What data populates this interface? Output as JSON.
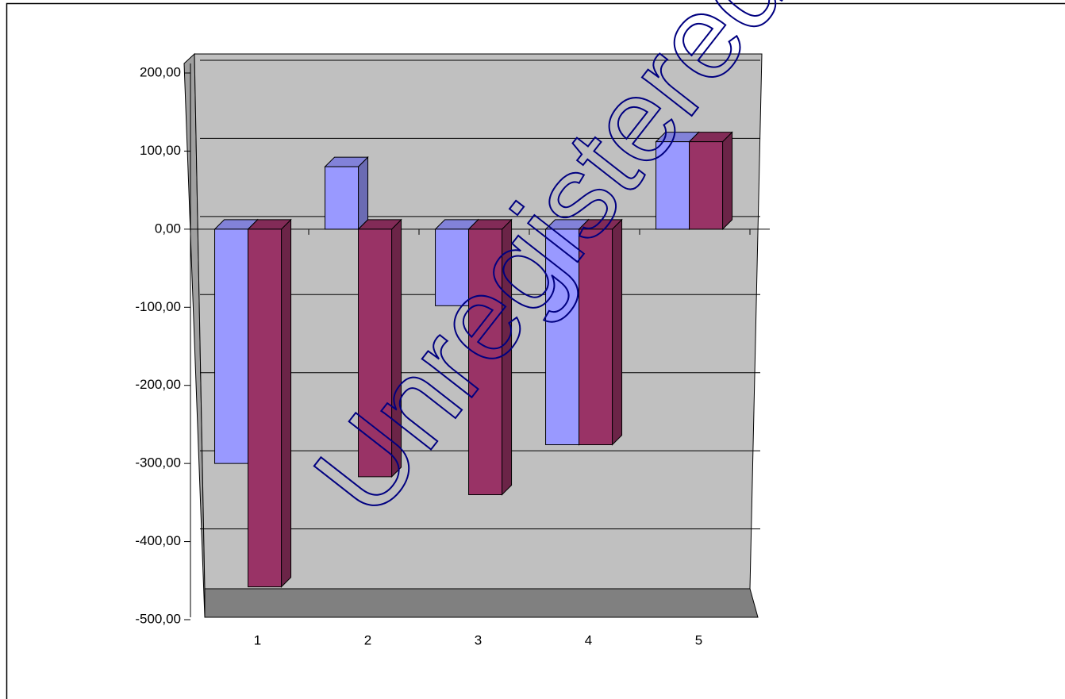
{
  "chart_data": {
    "type": "bar3d",
    "categories": [
      "1",
      "2",
      "3",
      "4",
      "5"
    ],
    "series": [
      {
        "color": "#9999ff",
        "values": [
          -300,
          80,
          -98,
          -276,
          112
        ]
      },
      {
        "color": "#993366",
        "values": [
          -458,
          -317,
          -340,
          -276,
          112
        ]
      }
    ],
    "ylim": [
      -500,
      200
    ],
    "yticks": [
      {
        "value": -500,
        "label": "-500,00"
      },
      {
        "value": -400,
        "label": "-400,00"
      },
      {
        "value": -300,
        "label": "-300,00"
      },
      {
        "value": -200,
        "label": "-200,00"
      },
      {
        "value": -100,
        "label": "-100,00"
      },
      {
        "value": 0,
        "label": "0,00"
      },
      {
        "value": 100,
        "label": "100,00"
      },
      {
        "value": 200,
        "label": "200,00"
      }
    ],
    "grid": true,
    "watermark": "Unregistered"
  }
}
